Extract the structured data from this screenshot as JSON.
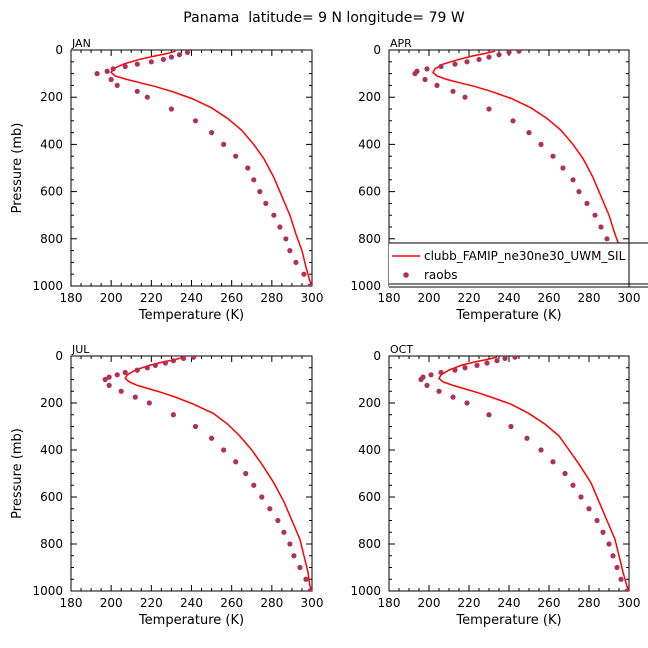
{
  "figure": {
    "title": "Panama  latitude= 9 N longitude= 79 W"
  },
  "colors": {
    "model_line": "#ff0000",
    "obs_points": "#b0305a"
  },
  "legend": {
    "position": "inside APR panel, lower right",
    "entries": [
      {
        "label": "clubb_FAMIP_ne30ne30_UWM_SIL",
        "marker": "line"
      },
      {
        "label": "raobs",
        "marker": "dot"
      }
    ]
  },
  "chart_data": [
    {
      "type": "line",
      "panel": "JAN",
      "xlabel": "Temperature (K)",
      "ylabel": "Pressure (mb)",
      "xlim": [
        180,
        300
      ],
      "ylim": [
        1000,
        0
      ],
      "xticks": [
        180,
        200,
        220,
        240,
        260,
        280,
        300
      ],
      "yticks": [
        0,
        200,
        400,
        600,
        800,
        1000
      ],
      "y_inverted": true,
      "series": [
        {
          "name": "clubb_FAMIP_ne30ne30_UWM_SIL",
          "style": "line",
          "points": [
            [
              232,
              5
            ],
            [
              228,
              15
            ],
            [
              222,
              25
            ],
            [
              214,
              40
            ],
            [
              206,
              60
            ],
            [
              201,
              80
            ],
            [
              200,
              95
            ],
            [
              202,
              110
            ],
            [
              208,
              125
            ],
            [
              215,
              140
            ],
            [
              222,
              155
            ],
            [
              230,
              175
            ],
            [
              240,
              205
            ],
            [
              250,
              245
            ],
            [
              258,
              290
            ],
            [
              265,
              340
            ],
            [
              271,
              400
            ],
            [
              276,
              460
            ],
            [
              281,
              540
            ],
            [
              285,
              620
            ],
            [
              289,
              700
            ],
            [
              292,
              780
            ],
            [
              295,
              850
            ],
            [
              297,
              920
            ],
            [
              299,
              980
            ],
            [
              300,
              1000
            ]
          ]
        },
        {
          "name": "raobs",
          "style": "scatter",
          "points": [
            [
              238,
              10
            ],
            [
              234,
              20
            ],
            [
              230,
              30
            ],
            [
              226,
              40
            ],
            [
              220,
              50
            ],
            [
              213,
              60
            ],
            [
              207,
              70
            ],
            [
              201,
              80
            ],
            [
              198,
              90
            ],
            [
              193,
              100
            ],
            [
              200,
              125
            ],
            [
              203,
              150
            ],
            [
              213,
              175
            ],
            [
              218,
              200
            ],
            [
              230,
              250
            ],
            [
              242,
              300
            ],
            [
              250,
              350
            ],
            [
              256,
              400
            ],
            [
              262,
              450
            ],
            [
              268,
              500
            ],
            [
              271,
              550
            ],
            [
              274,
              600
            ],
            [
              277,
              650
            ],
            [
              281,
              700
            ],
            [
              284,
              750
            ],
            [
              287,
              800
            ],
            [
              289,
              850
            ],
            [
              292,
              900
            ],
            [
              296,
              950
            ],
            [
              299,
              1000
            ]
          ]
        }
      ]
    },
    {
      "type": "line",
      "panel": "APR",
      "xlabel": "Temperature (K)",
      "ylabel": "",
      "xlim": [
        180,
        300
      ],
      "ylim": [
        1000,
        0
      ],
      "xticks": [
        180,
        200,
        220,
        240,
        260,
        280,
        300
      ],
      "yticks": [
        0,
        200,
        400,
        600,
        800,
        1000
      ],
      "y_inverted": true,
      "series": [
        {
          "name": "clubb_FAMIP_ne30ne30_UWM_SIL",
          "style": "line",
          "points": [
            [
              233,
              5
            ],
            [
              228,
              15
            ],
            [
              222,
              25
            ],
            [
              215,
              40
            ],
            [
              207,
              60
            ],
            [
              203,
              80
            ],
            [
              202,
              95
            ],
            [
              204,
              110
            ],
            [
              209,
              125
            ],
            [
              216,
              140
            ],
            [
              223,
              155
            ],
            [
              231,
              175
            ],
            [
              241,
              205
            ],
            [
              251,
              245
            ],
            [
              259,
              290
            ],
            [
              266,
              340
            ],
            [
              272,
              400
            ],
            [
              277,
              460
            ],
            [
              282,
              540
            ],
            [
              286,
              620
            ],
            [
              290,
              700
            ],
            [
              293,
              780
            ],
            [
              296,
              850
            ],
            [
              298,
              920
            ],
            [
              299,
              980
            ],
            [
              300,
              1000
            ]
          ]
        },
        {
          "name": "raobs",
          "style": "scatter",
          "points": [
            [
              245,
              5
            ],
            [
              240,
              10
            ],
            [
              235,
              20
            ],
            [
              230,
              30
            ],
            [
              225,
              40
            ],
            [
              219,
              50
            ],
            [
              213,
              60
            ],
            [
              206,
              70
            ],
            [
              199,
              80
            ],
            [
              194,
              90
            ],
            [
              193,
              100
            ],
            [
              198,
              125
            ],
            [
              204,
              150
            ],
            [
              212,
              175
            ],
            [
              218,
              200
            ],
            [
              230,
              250
            ],
            [
              242,
              300
            ],
            [
              250,
              350
            ],
            [
              256,
              400
            ],
            [
              262,
              450
            ],
            [
              267,
              500
            ],
            [
              272,
              550
            ],
            [
              275,
              600
            ],
            [
              279,
              650
            ],
            [
              283,
              700
            ],
            [
              286,
              750
            ],
            [
              289,
              800
            ],
            [
              292,
              850
            ],
            [
              294,
              900
            ],
            [
              297,
              950
            ],
            [
              299,
              1000
            ]
          ]
        }
      ]
    },
    {
      "type": "line",
      "panel": "JUL",
      "xlabel": "Temperature (K)",
      "ylabel": "Pressure (mb)",
      "xlim": [
        180,
        300
      ],
      "ylim": [
        1000,
        0
      ],
      "xticks": [
        180,
        200,
        220,
        240,
        260,
        280,
        300
      ],
      "yticks": [
        0,
        200,
        400,
        600,
        800,
        1000
      ],
      "y_inverted": true,
      "series": [
        {
          "name": "clubb_FAMIP_ne30ne30_UWM_SIL",
          "style": "line",
          "points": [
            [
              236,
              5
            ],
            [
              232,
              15
            ],
            [
              226,
              25
            ],
            [
              219,
              40
            ],
            [
              212,
              60
            ],
            [
              208,
              80
            ],
            [
              207,
              95
            ],
            [
              209,
              110
            ],
            [
              213,
              125
            ],
            [
              219,
              140
            ],
            [
              225,
              155
            ],
            [
              232,
              175
            ],
            [
              241,
              205
            ],
            [
              251,
              245
            ],
            [
              258,
              290
            ],
            [
              264,
              340
            ],
            [
              270,
              400
            ],
            [
              275,
              460
            ],
            [
              281,
              540
            ],
            [
              286,
              620
            ],
            [
              290,
              700
            ],
            [
              294,
              780
            ],
            [
              296,
              850
            ],
            [
              298,
              920
            ],
            [
              299,
              980
            ],
            [
              300,
              1000
            ]
          ]
        },
        {
          "name": "raobs",
          "style": "scatter",
          "points": [
            [
              241,
              5
            ],
            [
              236,
              10
            ],
            [
              231,
              20
            ],
            [
              227,
              30
            ],
            [
              222,
              40
            ],
            [
              218,
              50
            ],
            [
              213,
              60
            ],
            [
              207,
              70
            ],
            [
              203,
              80
            ],
            [
              199,
              90
            ],
            [
              197,
              100
            ],
            [
              199,
              125
            ],
            [
              205,
              150
            ],
            [
              212,
              175
            ],
            [
              219,
              200
            ],
            [
              231,
              250
            ],
            [
              242,
              300
            ],
            [
              250,
              350
            ],
            [
              256,
              400
            ],
            [
              262,
              450
            ],
            [
              267,
              500
            ],
            [
              271,
              550
            ],
            [
              275,
              600
            ],
            [
              279,
              650
            ],
            [
              283,
              700
            ],
            [
              286,
              750
            ],
            [
              289,
              800
            ],
            [
              291,
              850
            ],
            [
              294,
              900
            ],
            [
              297,
              950
            ],
            [
              299,
              1000
            ]
          ]
        }
      ]
    },
    {
      "type": "line",
      "panel": "OCT",
      "xlabel": "Temperature (K)",
      "ylabel": "",
      "xlim": [
        180,
        300
      ],
      "ylim": [
        1000,
        0
      ],
      "xticks": [
        180,
        200,
        220,
        240,
        260,
        280,
        300
      ],
      "yticks": [
        0,
        200,
        400,
        600,
        800,
        1000
      ],
      "y_inverted": true,
      "series": [
        {
          "name": "clubb_FAMIP_ne30ne30_UWM_SIL",
          "style": "line",
          "points": [
            [
              234,
              5
            ],
            [
              229,
              15
            ],
            [
              223,
              25
            ],
            [
              216,
              40
            ],
            [
              210,
              60
            ],
            [
              206,
              80
            ],
            [
              205,
              95
            ],
            [
              207,
              110
            ],
            [
              212,
              125
            ],
            [
              218,
              140
            ],
            [
              224,
              155
            ],
            [
              231,
              175
            ],
            [
              241,
              205
            ],
            [
              250,
              245
            ],
            [
              258,
              290
            ],
            [
              265,
              340
            ],
            [
              270,
              400
            ],
            [
              275,
              460
            ],
            [
              281,
              540
            ],
            [
              285,
              620
            ],
            [
              289,
              700
            ],
            [
              293,
              780
            ],
            [
              295,
              850
            ],
            [
              297,
              920
            ],
            [
              299,
              980
            ],
            [
              300,
              1000
            ]
          ]
        },
        {
          "name": "raobs",
          "style": "scatter",
          "points": [
            [
              243,
              5
            ],
            [
              238,
              10
            ],
            [
              234,
              20
            ],
            [
              229,
              30
            ],
            [
              224,
              40
            ],
            [
              218,
              50
            ],
            [
              213,
              60
            ],
            [
              206,
              70
            ],
            [
              201,
              80
            ],
            [
              197,
              90
            ],
            [
              196,
              100
            ],
            [
              199,
              125
            ],
            [
              205,
              150
            ],
            [
              212,
              175
            ],
            [
              219,
              200
            ],
            [
              230,
              250
            ],
            [
              241,
              300
            ],
            [
              249,
              350
            ],
            [
              256,
              400
            ],
            [
              262,
              450
            ],
            [
              268,
              500
            ],
            [
              272,
              550
            ],
            [
              276,
              600
            ],
            [
              280,
              650
            ],
            [
              284,
              700
            ],
            [
              287,
              750
            ],
            [
              290,
              800
            ],
            [
              292,
              850
            ],
            [
              294,
              900
            ],
            [
              296,
              950
            ],
            [
              299,
              1000
            ]
          ]
        }
      ]
    }
  ]
}
